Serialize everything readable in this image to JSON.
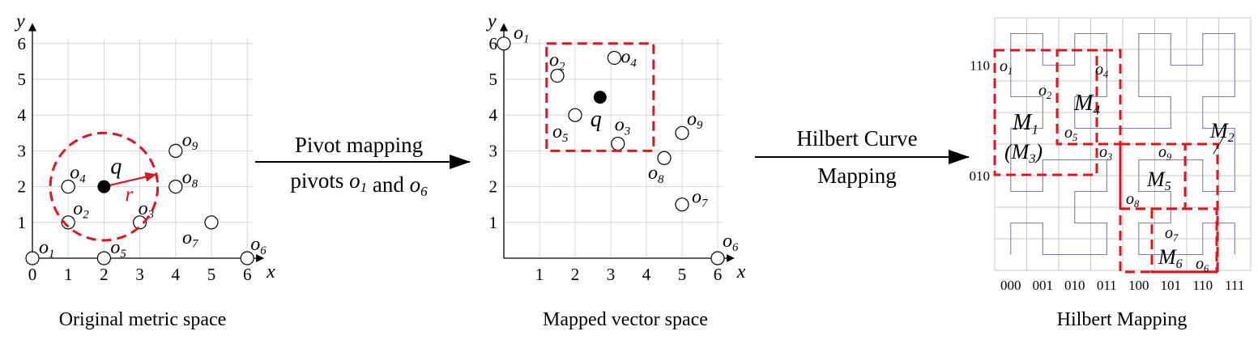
{
  "panel1": {
    "caption": "Original metric space",
    "xlabel": "x",
    "ylabel": "y",
    "ticks": [
      "0",
      "1",
      "2",
      "3",
      "4",
      "5",
      "6"
    ],
    "query": {
      "label": "q",
      "radius_label": "r",
      "x": 2,
      "y": 2,
      "radius": 1.5
    },
    "points": [
      {
        "label": "o1",
        "x": 0,
        "y": 0
      },
      {
        "label": "o2",
        "x": 1,
        "y": 1
      },
      {
        "label": "o3",
        "x": 3,
        "y": 1
      },
      {
        "label": "o4",
        "x": 1,
        "y": 2
      },
      {
        "label": "o5",
        "x": 2,
        "y": 0
      },
      {
        "label": "o6",
        "x": 6,
        "y": 0
      },
      {
        "label": "o7",
        "x": 5,
        "y": 1
      },
      {
        "label": "o8",
        "x": 4,
        "y": 2
      },
      {
        "label": "o9",
        "x": 4,
        "y": 3
      }
    ]
  },
  "arrow1": {
    "line1": "Pivot mapping",
    "line2": "pivots o1 and o6"
  },
  "panel2": {
    "caption": "Mapped vector space",
    "xlabel": "x",
    "ylabel": "y",
    "ticks": [
      "1",
      "2",
      "3",
      "4",
      "5",
      "6"
    ],
    "query": {
      "label": "q",
      "x": 2.7,
      "y": 4.5
    },
    "box": {
      "x0": 1.2,
      "x1": 4.2,
      "y0": 3,
      "y1": 6
    },
    "points": [
      {
        "label": "o1",
        "x": 0,
        "y": 6
      },
      {
        "label": "o2",
        "x": 1.5,
        "y": 5.1
      },
      {
        "label": "o3",
        "x": 3.2,
        "y": 3.2
      },
      {
        "label": "o4",
        "x": 3.1,
        "y": 5.6
      },
      {
        "label": "o5",
        "x": 2,
        "y": 4
      },
      {
        "label": "o6",
        "x": 6,
        "y": 0
      },
      {
        "label": "o7",
        "x": 5,
        "y": 1.5
      },
      {
        "label": "o8",
        "x": 4.5,
        "y": 2.8
      },
      {
        "label": "o9",
        "x": 5,
        "y": 3.5
      }
    ]
  },
  "arrow2": {
    "line1": "Hilbert Curve",
    "line2": "Mapping"
  },
  "panel3": {
    "caption": "Hilbert Mapping",
    "xticks": [
      "000",
      "001",
      "010",
      "011",
      "100",
      "101",
      "110",
      "111"
    ],
    "yticks": [
      "110",
      "010"
    ],
    "region_labels": [
      "M1",
      "(M3)",
      "M4",
      "M2",
      "M5",
      "M6"
    ],
    "point_labels": [
      "o1",
      "o2",
      "o3",
      "o4",
      "o5",
      "o6",
      "o7",
      "o8",
      "o9"
    ]
  },
  "colors": {
    "accent": "#e0141e",
    "curve": "#7b7fb0",
    "grid": "#d6d6d6"
  }
}
